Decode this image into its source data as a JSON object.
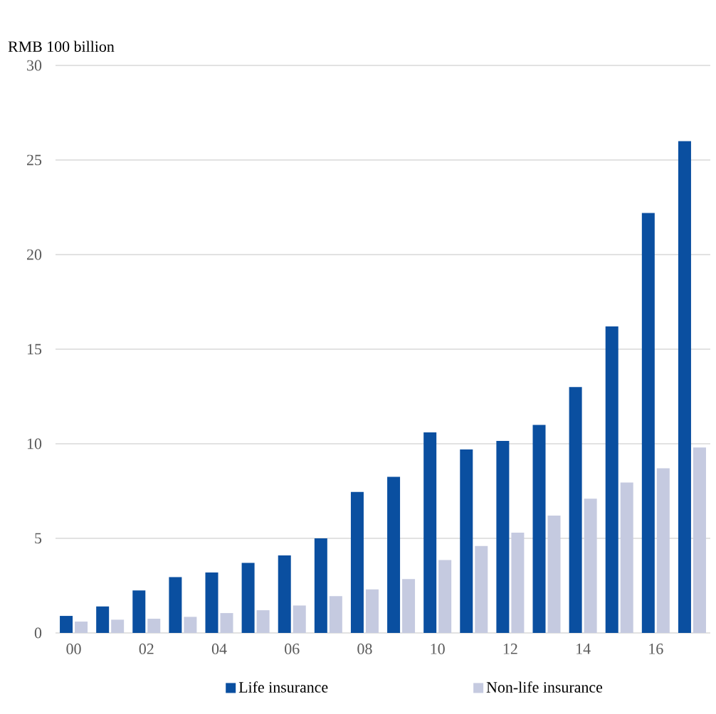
{
  "chart_data": {
    "type": "bar",
    "ylabel": "RMB 100 billion",
    "categories": [
      "00",
      null,
      "02",
      null,
      "04",
      null,
      "06",
      null,
      "08",
      null,
      "10",
      null,
      "12",
      null,
      "14",
      null,
      "16",
      null
    ],
    "series": [
      {
        "name": "Life insurance",
        "color": "#0a4fa0",
        "values": [
          0.9,
          1.4,
          2.25,
          2.95,
          3.2,
          3.7,
          4.1,
          5.0,
          7.45,
          8.25,
          10.6,
          9.7,
          10.15,
          11.0,
          13.0,
          16.2,
          22.2,
          26.0
        ]
      },
      {
        "name": "Non-life insurance",
        "color": "#c5cae0",
        "values": [
          0.6,
          0.7,
          0.75,
          0.85,
          1.05,
          1.2,
          1.45,
          1.95,
          2.3,
          2.85,
          3.85,
          4.6,
          5.3,
          6.2,
          7.1,
          7.95,
          8.7,
          9.8
        ]
      }
    ],
    "ylim": [
      0,
      30
    ],
    "yticks": [
      0,
      5,
      10,
      15,
      20,
      25,
      30
    ],
    "grid": "y",
    "legend": "bottom"
  }
}
